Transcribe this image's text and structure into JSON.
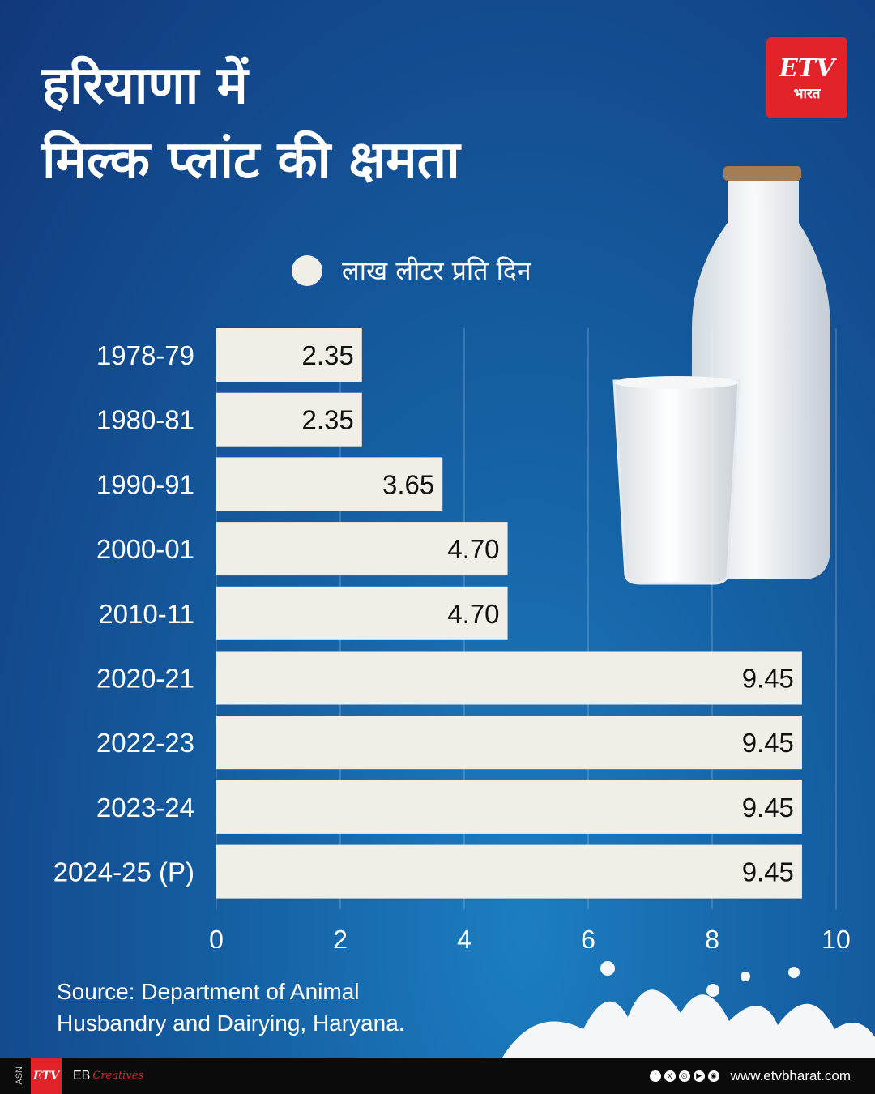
{
  "title_line1": "हरियाणा में",
  "title_line2": "मिल्क प्लांट की क्षमता",
  "brand": {
    "mark": "ETV",
    "sub": "भारत"
  },
  "legend_label": "लाख लीटर प्रति दिन",
  "source_line1": "Source: Department of Animal",
  "source_line2": "Husbandry and Dairying, Haryana.",
  "footer": {
    "asn": "ASN",
    "logo_text": "ETV",
    "eb": "EB",
    "eb_creatives": "Creatives",
    "socials": [
      "f",
      "X",
      "◎",
      "▶",
      "◉"
    ],
    "url": "www.etvbharat.com"
  },
  "colors": {
    "bar": "#f1eee8",
    "bg_dark": "#11387a",
    "bg_light": "#1c7ec0",
    "brand_red": "#e3232a"
  },
  "chart_data": {
    "type": "bar",
    "orientation": "horizontal",
    "categories": [
      "1978-79",
      "1980-81",
      "1990-91",
      "2000-01",
      "2010-11",
      "2020-21",
      "2022-23",
      "2023-24",
      "2024-25 (P)"
    ],
    "values": [
      2.35,
      2.35,
      3.65,
      4.7,
      4.7,
      9.45,
      9.45,
      9.45,
      9.45
    ],
    "value_labels": [
      "2.35",
      "2.35",
      "3.65",
      "4.70",
      "4.70",
      "9.45",
      "9.45",
      "9.45",
      "9.45"
    ],
    "series": [
      {
        "name": "लाख लीटर प्रति दिन",
        "values": [
          2.35,
          2.35,
          3.65,
          4.7,
          4.7,
          9.45,
          9.45,
          9.45,
          9.45
        ]
      }
    ],
    "xlim": [
      0,
      10
    ],
    "xticks": [
      "0",
      "2",
      "4",
      "6",
      "8",
      "10"
    ],
    "grid": true,
    "legend_position": "top"
  }
}
